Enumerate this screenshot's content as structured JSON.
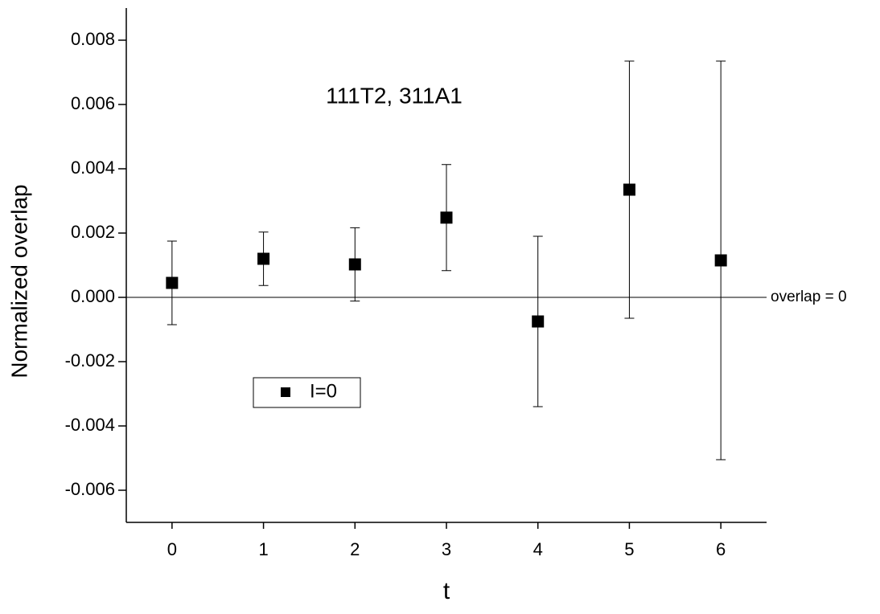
{
  "chart_data": {
    "type": "errorbar",
    "annotation": "111T2, 311A1",
    "xlabel": "t",
    "ylabel": "Normalized overlap",
    "series": [
      {
        "name": "I=0",
        "color": "#000000",
        "x": [
          0,
          1,
          2,
          3,
          4,
          5,
          6
        ],
        "values": [
          0.00045,
          0.0012,
          0.001025,
          0.00248,
          -0.00075,
          0.00335,
          0.00115
        ],
        "errors": [
          0.0013,
          0.00083,
          0.00114,
          0.00165,
          0.00265,
          0.004,
          0.0062
        ]
      }
    ],
    "hline": {
      "value": 0,
      "label": "overlap = 0"
    },
    "xlim": [
      -0.5,
      6.5
    ],
    "xticks": [
      0,
      1,
      2,
      3,
      4,
      5,
      6
    ],
    "ylim": [
      -0.007,
      0.009
    ],
    "yticks": [
      -0.006,
      -0.004,
      -0.002,
      {
        "value": 0,
        "label": "0.000"
      },
      0.002,
      0.004,
      0.006,
      0.008
    ],
    "legend": "lower left"
  }
}
